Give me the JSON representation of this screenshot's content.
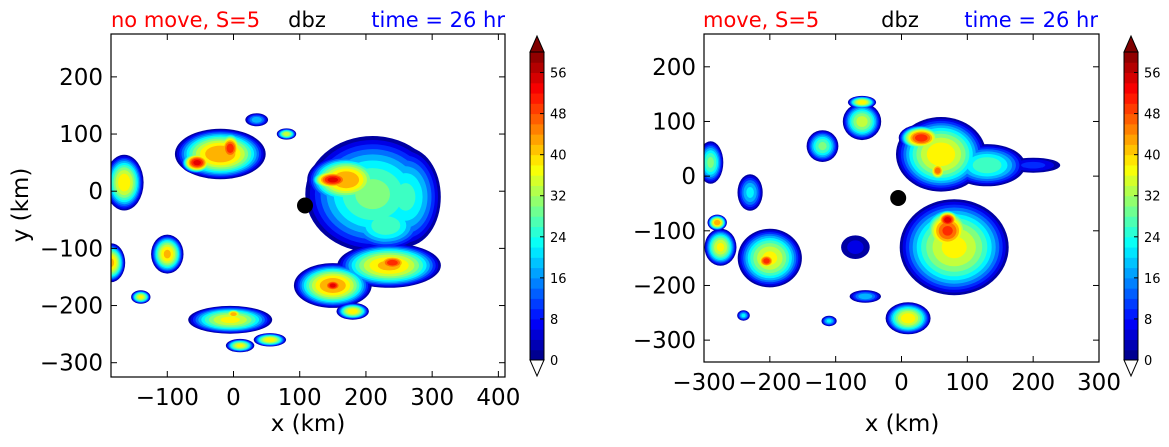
{
  "chart_data": [
    {
      "type": "contour",
      "title_left": "no move, S=5",
      "title_center": "dbz",
      "title_right": "time = 26 hr",
      "title_colors": {
        "left": "#ff0000",
        "center": "#000000",
        "right": "#0000ff"
      },
      "xlabel": "x (km)",
      "ylabel": "y (km)",
      "xlim": [
        -185,
        410
      ],
      "ylim": [
        -325,
        275
      ],
      "xticks": [
        -100,
        0,
        100,
        200,
        300,
        400
      ],
      "yticks": [
        200,
        100,
        0,
        -100,
        -200,
        -300
      ],
      "xtick_labels": [
        "−100",
        "0",
        "100",
        "200",
        "300",
        "400"
      ],
      "ytick_labels": [
        "200",
        "100",
        "0",
        "−100",
        "−200",
        "−300"
      ],
      "center_marker": {
        "x": 108,
        "y": -25
      },
      "colorbar": {
        "min": 0,
        "max": 60,
        "ticks": [
          0,
          8,
          16,
          24,
          32,
          40,
          48,
          56
        ],
        "labels": [
          "0",
          "8",
          "16",
          "24",
          "32",
          "40",
          "48",
          "56"
        ],
        "extend": "both"
      },
      "cells": [
        {
          "x": 210,
          "y": -5,
          "rx": 105,
          "ry": 105,
          "peak": 30
        },
        {
          "x": 260,
          "y": -10,
          "rx": 55,
          "ry": 90,
          "peak": 26
        },
        {
          "x": 170,
          "y": 20,
          "rx": 60,
          "ry": 45,
          "peak": 45
        },
        {
          "x": 150,
          "y": 20,
          "rx": 35,
          "ry": 20,
          "peak": 55
        },
        {
          "x": 230,
          "y": -60,
          "rx": 60,
          "ry": 45,
          "peak": 28
        },
        {
          "x": 235,
          "y": -130,
          "rx": 80,
          "ry": 40,
          "peak": 42
        },
        {
          "x": 240,
          "y": -125,
          "rx": 30,
          "ry": 18,
          "peak": 52
        },
        {
          "x": 150,
          "y": -165,
          "rx": 60,
          "ry": 40,
          "peak": 45
        },
        {
          "x": 150,
          "y": -165,
          "rx": 20,
          "ry": 15,
          "peak": 55
        },
        {
          "x": 180,
          "y": -210,
          "rx": 25,
          "ry": 15,
          "peak": 40
        },
        {
          "x": -20,
          "y": 65,
          "rx": 70,
          "ry": 45,
          "peak": 45
        },
        {
          "x": -55,
          "y": 50,
          "rx": 25,
          "ry": 20,
          "peak": 55
        },
        {
          "x": -5,
          "y": 75,
          "rx": 20,
          "ry": 30,
          "peak": 52
        },
        {
          "x": 80,
          "y": 100,
          "rx": 15,
          "ry": 10,
          "peak": 36
        },
        {
          "x": -165,
          "y": 15,
          "rx": 30,
          "ry": 50,
          "peak": 40
        },
        {
          "x": -100,
          "y": -110,
          "rx": 25,
          "ry": 35,
          "peak": 42
        },
        {
          "x": -185,
          "y": -125,
          "rx": 22,
          "ry": 35,
          "peak": 42
        },
        {
          "x": -5,
          "y": -225,
          "rx": 65,
          "ry": 25,
          "peak": 38
        },
        {
          "x": 0,
          "y": -215,
          "rx": 15,
          "ry": 10,
          "peak": 45
        },
        {
          "x": -140,
          "y": -185,
          "rx": 15,
          "ry": 12,
          "peak": 38
        },
        {
          "x": 10,
          "y": -270,
          "rx": 22,
          "ry": 12,
          "peak": 38
        },
        {
          "x": 55,
          "y": -260,
          "rx": 25,
          "ry": 12,
          "peak": 40
        },
        {
          "x": 35,
          "y": 125,
          "rx": 18,
          "ry": 12,
          "peak": 20
        }
      ]
    },
    {
      "type": "contour",
      "title_left": "move, S=5",
      "title_center": "dbz",
      "title_right": "time = 26 hr",
      "title_colors": {
        "left": "#ff0000",
        "center": "#000000",
        "right": "#0000ff"
      },
      "xlabel": "x (km)",
      "ylabel": "",
      "xlim": [
        -300,
        300
      ],
      "ylim": [
        -340,
        260
      ],
      "xticks": [
        -300,
        -200,
        -100,
        0,
        100,
        200,
        300
      ],
      "yticks": [
        200,
        100,
        0,
        -100,
        -200,
        -300
      ],
      "xtick_labels": [
        "−300",
        "−200",
        "−100",
        "0",
        "100",
        "200",
        "300"
      ],
      "ytick_labels": [
        "200",
        "100",
        "0",
        "−100",
        "−200",
        "−300"
      ],
      "center_marker": {
        "x": -5,
        "y": -40
      },
      "colorbar": {
        "min": 0,
        "max": 60,
        "ticks": [
          0,
          8,
          16,
          24,
          32,
          40,
          48,
          56
        ],
        "labels": [
          "0",
          "8",
          "16",
          "24",
          "32",
          "40",
          "48",
          "56"
        ],
        "extend": "both"
      },
      "cells": [
        {
          "x": 60,
          "y": 40,
          "rx": 70,
          "ry": 70,
          "peak": 40
        },
        {
          "x": 30,
          "y": 70,
          "rx": 35,
          "ry": 25,
          "peak": 52
        },
        {
          "x": 55,
          "y": 10,
          "rx": 15,
          "ry": 20,
          "peak": 48
        },
        {
          "x": 130,
          "y": 20,
          "rx": 60,
          "ry": 40,
          "peak": 28
        },
        {
          "x": 200,
          "y": 20,
          "rx": 45,
          "ry": 15,
          "peak": 10
        },
        {
          "x": 80,
          "y": -130,
          "rx": 85,
          "ry": 90,
          "peak": 38
        },
        {
          "x": 70,
          "y": -100,
          "rx": 40,
          "ry": 45,
          "peak": 50
        },
        {
          "x": 70,
          "y": -80,
          "rx": 20,
          "ry": 20,
          "peak": 56
        },
        {
          "x": 10,
          "y": -260,
          "rx": 35,
          "ry": 30,
          "peak": 40
        },
        {
          "x": -60,
          "y": 100,
          "rx": 30,
          "ry": 35,
          "peak": 35
        },
        {
          "x": -120,
          "y": 55,
          "rx": 25,
          "ry": 30,
          "peak": 30
        },
        {
          "x": -60,
          "y": 135,
          "rx": 22,
          "ry": 12,
          "peak": 40
        },
        {
          "x": -200,
          "y": -150,
          "rx": 50,
          "ry": 55,
          "peak": 38
        },
        {
          "x": -205,
          "y": -155,
          "rx": 18,
          "ry": 18,
          "peak": 52
        },
        {
          "x": -275,
          "y": -130,
          "rx": 25,
          "ry": 35,
          "peak": 38
        },
        {
          "x": -280,
          "y": -85,
          "rx": 15,
          "ry": 15,
          "peak": 45
        },
        {
          "x": -290,
          "y": 25,
          "rx": 20,
          "ry": 40,
          "peak": 30
        },
        {
          "x": -230,
          "y": -30,
          "rx": 20,
          "ry": 35,
          "peak": 22
        },
        {
          "x": -70,
          "y": -130,
          "rx": 25,
          "ry": 25,
          "peak": 6
        },
        {
          "x": -55,
          "y": -220,
          "rx": 25,
          "ry": 12,
          "peak": 20
        },
        {
          "x": -110,
          "y": -265,
          "rx": 12,
          "ry": 10,
          "peak": 22
        },
        {
          "x": -240,
          "y": -255,
          "rx": 10,
          "ry": 10,
          "peak": 22
        }
      ]
    }
  ]
}
